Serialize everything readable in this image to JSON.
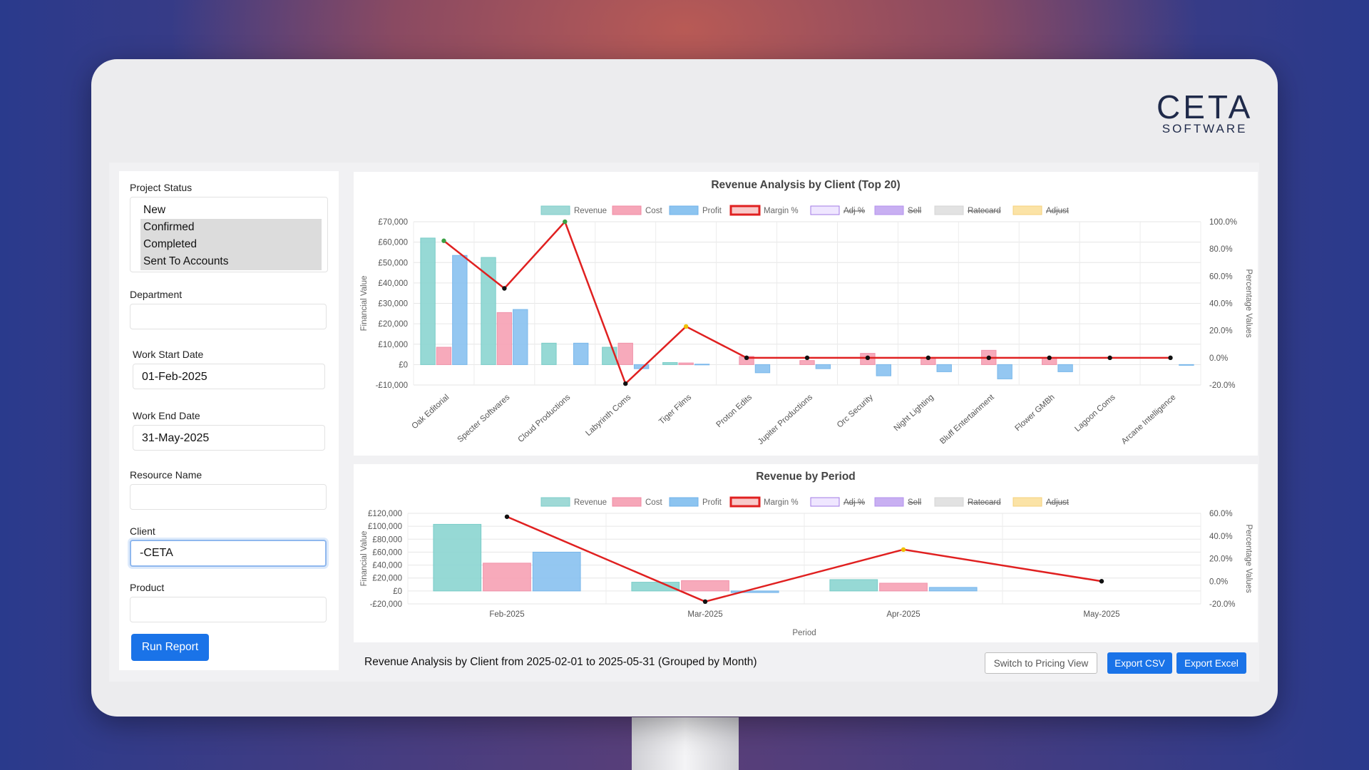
{
  "branding": {
    "word": "CETA",
    "sub": "SOFTWARE"
  },
  "filters": {
    "project_status_label": "Project Status",
    "project_status_options": [
      {
        "label": "New",
        "selected": false
      },
      {
        "label": "Confirmed",
        "selected": true
      },
      {
        "label": "Completed",
        "selected": true
      },
      {
        "label": "Sent To Accounts",
        "selected": true
      }
    ],
    "department_label": "Department",
    "department_value": "",
    "work_start_label": "Work Start Date",
    "work_start_value": "01-Feb-2025",
    "work_end_label": "Work End Date",
    "work_end_value": "31-May-2025",
    "resource_label": "Resource Name",
    "resource_value": "",
    "client_label": "Client",
    "client_value": "-CETA",
    "product_label": "Product",
    "product_value": "",
    "run_label": "Run Report"
  },
  "legend": [
    {
      "label": "Revenue",
      "fill": "#9fd9d6",
      "stroke": "#7ccdc9",
      "struck": false
    },
    {
      "label": "Cost",
      "fill": "#f6a6b8",
      "stroke": "#f08aa3",
      "struck": false
    },
    {
      "label": "Profit",
      "fill": "#8cc4f0",
      "stroke": "#6fb2ea",
      "struck": false
    },
    {
      "label": "Margin %",
      "fill": "#f8c9c9",
      "stroke": "#e02020",
      "struck": false
    },
    {
      "label": "Adj %",
      "fill": "#efe6ff",
      "stroke": "#a07ae6",
      "struck": true
    },
    {
      "label": "Sell",
      "fill": "#c8aff2",
      "stroke": "#b392ec",
      "struck": true
    },
    {
      "label": "Ratecard",
      "fill": "#e2e2e2",
      "stroke": "#d4d4d4",
      "struck": true
    },
    {
      "label": "Adjust",
      "fill": "#fbe3a6",
      "stroke": "#f6d27c",
      "struck": true
    }
  ],
  "colors": {
    "revenue": "#8ed6d2",
    "cost": "#f7a3b6",
    "profit": "#8bc3f0",
    "margin": "#e02020",
    "accent": "#1a73e8"
  },
  "chart_data": [
    {
      "type": "bar",
      "title": "Revenue Analysis by Client (Top 20)",
      "ylabel": "Financial Value",
      "y2label": "Percentage Values",
      "ylim": [
        -10000,
        70000
      ],
      "yticks": [
        -10000,
        0,
        10000,
        20000,
        30000,
        40000,
        50000,
        60000,
        70000
      ],
      "ytick_labels": [
        "-£10,000",
        "£0",
        "£10,000",
        "£20,000",
        "£30,000",
        "£40,000",
        "£50,000",
        "£60,000",
        "£70,000"
      ],
      "y2lim": [
        -20,
        100
      ],
      "y2ticks": [
        -20,
        0,
        20,
        40,
        60,
        80,
        100
      ],
      "y2tick_labels": [
        "-20.0%",
        "0.0%",
        "20.0%",
        "40.0%",
        "60.0%",
        "80.0%",
        "100.0%"
      ],
      "categories": [
        "Oak Editorial",
        "Specter Softwares",
        "Cloud Productions",
        "Labyrinth Coms",
        "Tiger Films",
        "Proton Edits",
        "Jupiter Productions",
        "Orc Security",
        "Night Lighting",
        "Bluff Entertainment",
        "Flower GMBh",
        "Lagoon Coms",
        "Arcane Intelligence"
      ],
      "legend_position": "top",
      "grid": true,
      "series": [
        {
          "name": "Revenue",
          "values": [
            62000,
            52500,
            10500,
            8500,
            1000,
            0,
            0,
            0,
            0,
            0,
            0,
            0,
            0
          ]
        },
        {
          "name": "Cost",
          "values": [
            8500,
            25500,
            0,
            10500,
            800,
            4000,
            2000,
            5500,
            3500,
            7000,
            3500,
            0,
            0
          ]
        },
        {
          "name": "Profit",
          "values": [
            53500,
            27000,
            10500,
            -2000,
            200,
            -4000,
            -2000,
            -5500,
            -3500,
            -7000,
            -3500,
            0,
            -200
          ]
        },
        {
          "name": "Margin %",
          "values": [
            86,
            51,
            100,
            -19,
            23,
            0,
            0,
            0,
            0,
            0,
            0,
            0,
            0
          ]
        }
      ]
    },
    {
      "type": "bar",
      "title": "Revenue by Period",
      "xlabel": "Period",
      "ylabel": "Financial Value",
      "y2label": "Percentage Values",
      "ylim": [
        -20000,
        120000
      ],
      "yticks": [
        -20000,
        0,
        20000,
        40000,
        60000,
        80000,
        100000,
        120000
      ],
      "ytick_labels": [
        "-£20,000",
        "£0",
        "£20,000",
        "£40,000",
        "£60,000",
        "£80,000",
        "£100,000",
        "£120,000"
      ],
      "y2lim": [
        -20,
        60
      ],
      "y2ticks": [
        -20,
        0,
        20,
        40,
        60
      ],
      "y2tick_labels": [
        "-20.0%",
        "0.0%",
        "20.0%",
        "40.0%",
        "60.0%"
      ],
      "categories": [
        "Feb-2025",
        "Mar-2025",
        "Apr-2025",
        "May-2025"
      ],
      "legend_position": "top",
      "grid": true,
      "series": [
        {
          "name": "Revenue",
          "values": [
            103000,
            13500,
            17500,
            0
          ]
        },
        {
          "name": "Cost",
          "values": [
            43000,
            16000,
            12000,
            0
          ]
        },
        {
          "name": "Profit",
          "values": [
            60000,
            -2500,
            5500,
            0
          ]
        },
        {
          "name": "Margin %",
          "values": [
            57,
            -18,
            28,
            0
          ]
        }
      ]
    }
  ],
  "footer": {
    "summary": "Revenue Analysis by Client from 2025-02-01 to 2025-05-31 (Grouped by Month)",
    "switch_label": "Switch to Pricing View",
    "export_csv_label": "Export CSV",
    "export_excel_label": "Export Excel"
  }
}
